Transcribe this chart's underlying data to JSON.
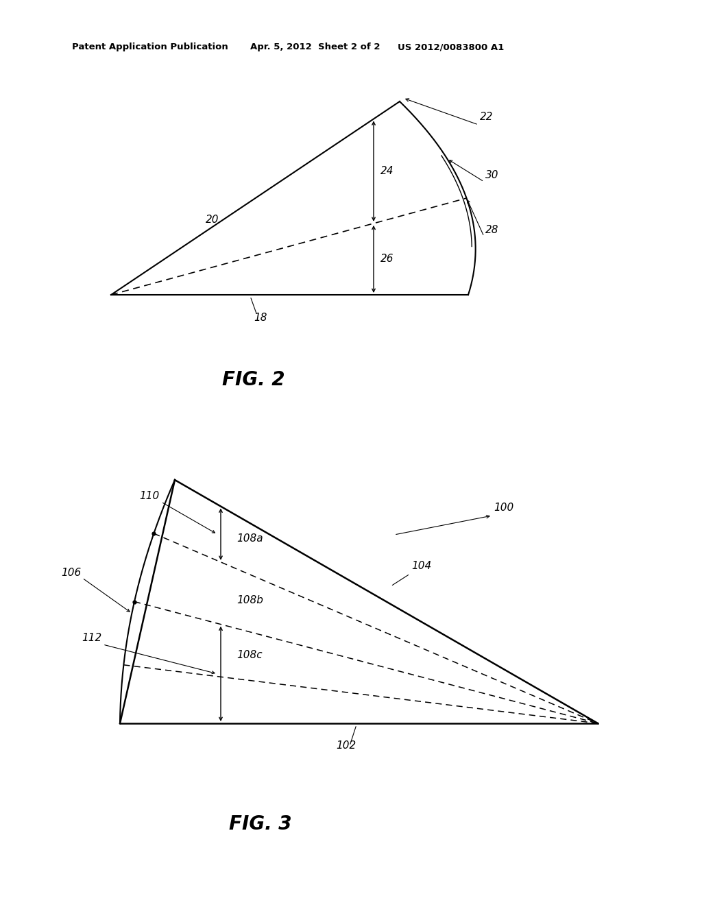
{
  "bg_color": "#ffffff",
  "fig2_label": "FIG. 2",
  "fig3_label": "FIG. 3",
  "header_left": "Patent Application Publication",
  "header_mid": "Apr. 5, 2012  Sheet 2 of 2",
  "header_right": "US 2012/0083800 A1"
}
